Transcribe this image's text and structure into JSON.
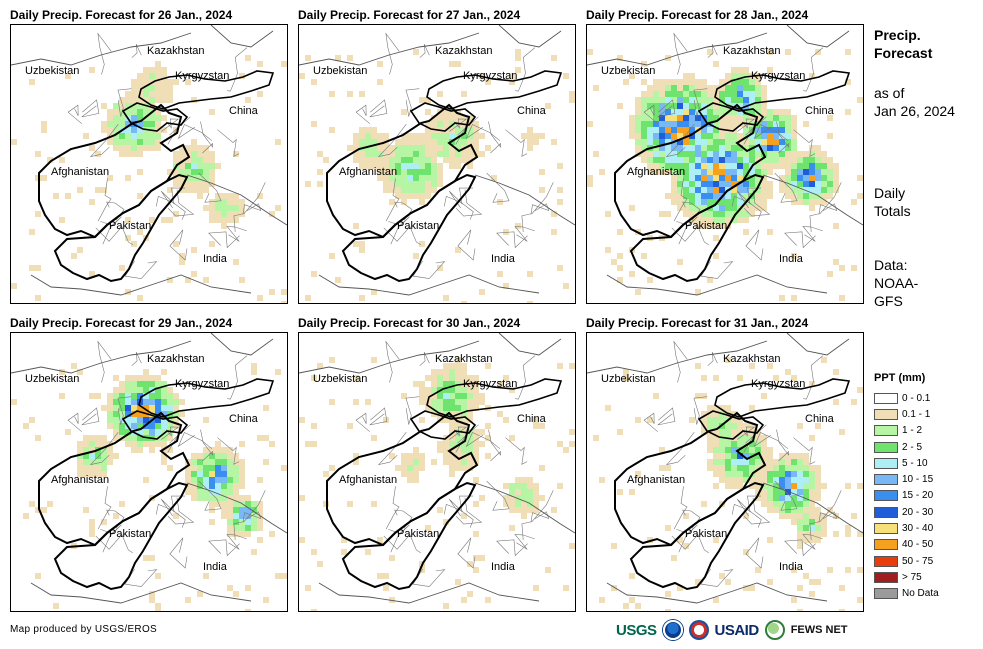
{
  "panels": [
    {
      "title": "Daily Precip. Forecast for 26 Jan., 2024",
      "intensity": 0.35
    },
    {
      "title": "Daily Precip. Forecast for 27 Jan., 2024",
      "intensity": 0.3
    },
    {
      "title": "Daily Precip. Forecast for 28 Jan., 2024",
      "intensity": 0.9
    },
    {
      "title": "Daily Precip. Forecast for 29 Jan., 2024",
      "intensity": 0.7
    },
    {
      "title": "Daily Precip. Forecast for 30 Jan., 2024",
      "intensity": 0.35
    },
    {
      "title": "Daily Precip. Forecast for 31 Jan., 2024",
      "intensity": 0.6
    }
  ],
  "countries": {
    "kazakhstan": "Kazakhstan",
    "uzbekistan": "Uzbekistan",
    "kyrgyzstan": "Kyrgyzstan",
    "china": "China",
    "afghanistan": "Afghanistan",
    "pakistan": "Pakistan",
    "india": "India"
  },
  "side": {
    "title_line1": "Precip.",
    "title_line2": "Forecast",
    "asof_line1": "as of",
    "asof_line2": "Jan 26, 2024",
    "daily_line1": "Daily",
    "daily_line2": "Totals",
    "data_line1": "Data:",
    "data_line2": "NOAA-",
    "data_line3": "GFS"
  },
  "legend": {
    "title": "PPT (mm)",
    "items": [
      {
        "label": "0 - 0.1",
        "color": "#ffffff"
      },
      {
        "label": "0.1 - 1",
        "color": "#f0dfb6"
      },
      {
        "label": "1 - 2",
        "color": "#b6f5a3"
      },
      {
        "label": "2 - 5",
        "color": "#6ee36e"
      },
      {
        "label": "5 - 10",
        "color": "#aeeef5"
      },
      {
        "label": "10 - 15",
        "color": "#78b8f5"
      },
      {
        "label": "15 - 20",
        "color": "#3a8ef0"
      },
      {
        "label": "20 - 30",
        "color": "#1f5ed8"
      },
      {
        "label": "30 - 40",
        "color": "#f5e07a"
      },
      {
        "label": "40 - 50",
        "color": "#f5a01e"
      },
      {
        "label": "50 - 75",
        "color": "#e83e0e"
      },
      {
        "label": "> 75",
        "color": "#a01e1e"
      },
      {
        "label": "No Data",
        "color": "#9b9b9b"
      }
    ]
  },
  "credit": "Map produced by USGS/EROS",
  "logos": {
    "usgs": "USGS",
    "usaid": "USAID",
    "fews": "FEWS NET"
  }
}
